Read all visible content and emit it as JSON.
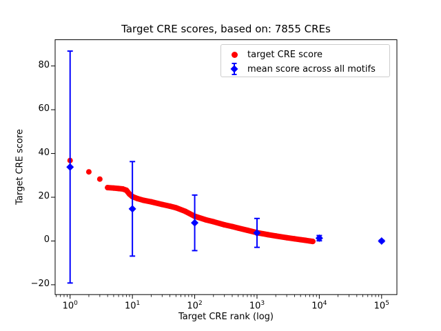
{
  "title": "Target CRE scores, based on: 7855 CREs",
  "axes": {
    "xlabel": "Target CRE rank (log)",
    "ylabel": "Target CRE score",
    "x_ticks": [
      {
        "base": "10",
        "exp": "0"
      },
      {
        "base": "10",
        "exp": "1"
      },
      {
        "base": "10",
        "exp": "2"
      },
      {
        "base": "10",
        "exp": "3"
      },
      {
        "base": "10",
        "exp": "4"
      },
      {
        "base": "10",
        "exp": "5"
      }
    ],
    "y_ticks": [
      "−20",
      "0",
      "20",
      "40",
      "60",
      "80"
    ]
  },
  "legend": {
    "items": [
      {
        "label": "target CRE score",
        "marker": "circle",
        "color": "#ff0000"
      },
      {
        "label": "mean score across all motifs",
        "marker": "diamond-errorbar",
        "color": "#0000ff"
      }
    ]
  },
  "colors": {
    "target_score": "#ff0000",
    "mean_score": "#0000ff",
    "spine": "#000000",
    "legend_border": "#cccccc",
    "background": "#ffffff"
  },
  "chart_data": {
    "type": "scatter",
    "title": "Target CRE scores, based on: 7855 CREs",
    "xlabel": "Target CRE rank (log)",
    "ylabel": "Target CRE score",
    "x_scale": "log",
    "y_scale": "linear",
    "xlim": [
      0.575,
      176000
    ],
    "ylim": [
      -24.5,
      92
    ],
    "x_tick_values": [
      1,
      10,
      100,
      1000,
      10000,
      100000
    ],
    "y_tick_values": [
      -20,
      0,
      20,
      40,
      60,
      80
    ],
    "grid": false,
    "legend_position": "upper right",
    "n_points_stated": 7855,
    "series": [
      {
        "name": "target CRE score",
        "type": "scatter",
        "marker": "circle",
        "color": "#ff0000",
        "note": "~7855 points at ranks 1..7855 forming a dense band; sampled envelope points (rank, score):",
        "points": [
          [
            1,
            36.8
          ],
          [
            2,
            31.6
          ],
          [
            3,
            28.3
          ],
          [
            4,
            24.4
          ],
          [
            5,
            24.2
          ],
          [
            6,
            24.0
          ],
          [
            7,
            23.8
          ],
          [
            8,
            23.2
          ],
          [
            9,
            21.4
          ],
          [
            10,
            20.3
          ],
          [
            12,
            19.4
          ],
          [
            15,
            18.6
          ],
          [
            20,
            17.9
          ],
          [
            30,
            16.7
          ],
          [
            40,
            15.9
          ],
          [
            50,
            15.2
          ],
          [
            70,
            13.6
          ],
          [
            100,
            11.3
          ],
          [
            150,
            9.7
          ],
          [
            200,
            8.8
          ],
          [
            300,
            7.4
          ],
          [
            400,
            6.6
          ],
          [
            500,
            5.9
          ],
          [
            700,
            4.9
          ],
          [
            1000,
            3.8
          ],
          [
            1500,
            2.9
          ],
          [
            2000,
            2.3
          ],
          [
            3000,
            1.5
          ],
          [
            4000,
            1.0
          ],
          [
            5000,
            0.6
          ],
          [
            6000,
            0.3
          ],
          [
            7000,
            0.0
          ],
          [
            7855,
            -0.2
          ]
        ]
      },
      {
        "name": "mean score across all motifs",
        "type": "errorbar",
        "marker": "diamond",
        "color": "#0000ff",
        "x": [
          1,
          10,
          100,
          1000,
          10000,
          100000
        ],
        "y": [
          33.8,
          14.7,
          8.3,
          3.7,
          1.3,
          0.0
        ],
        "yerr": [
          53.0,
          21.6,
          12.7,
          6.6,
          1.2,
          0.4
        ]
      }
    ]
  }
}
